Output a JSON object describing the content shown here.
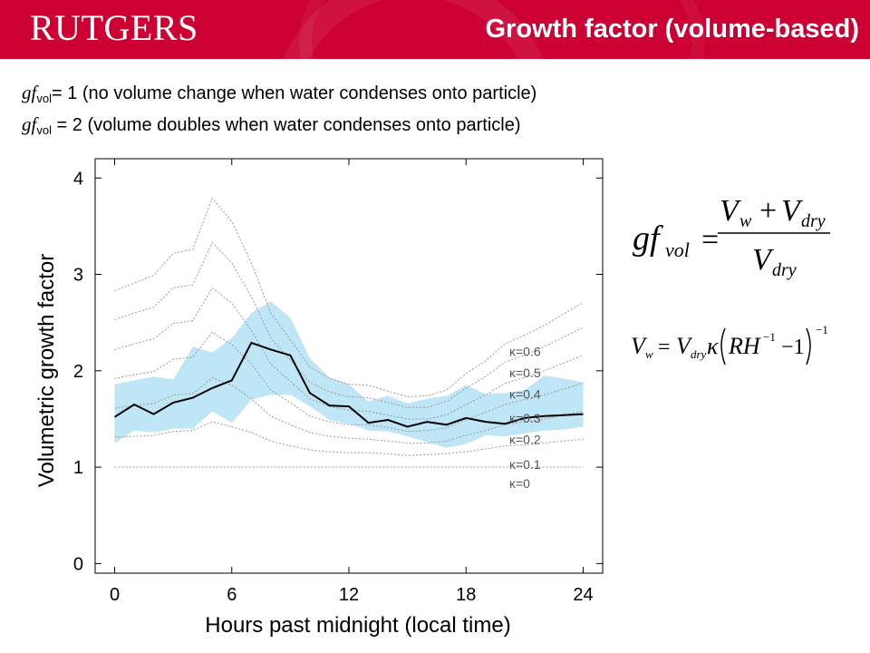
{
  "header": {
    "logo_text": "RUTGERS",
    "title": "Growth factor (volume-based)",
    "brand_color": "#cc0033"
  },
  "definitions": [
    {
      "symbol": "gf",
      "subscript": "vol",
      "text": "= 1 (no volume change when water condenses onto particle)"
    },
    {
      "symbol": "gf",
      "subscript": "vol",
      "text": " = 2 (volume doubles when water condenses onto particle)"
    }
  ],
  "equations": {
    "gf_vol": "gf_vol = (V_w + V_dry) / V_dry",
    "v_w": "V_w = V_dry κ (RH^-1 − 1)^-1"
  },
  "chart_data": {
    "type": "line",
    "xlabel": "Hours past midnight (local time)",
    "ylabel": "Volumetric growth factor",
    "xlim": [
      -1,
      25
    ],
    "ylim": [
      -0.1,
      4.2
    ],
    "xticks": [
      0,
      6,
      12,
      18,
      24
    ],
    "yticks": [
      0,
      1,
      2,
      3,
      4
    ],
    "grid": false,
    "series": [
      {
        "x": [
          0,
          1,
          2,
          3,
          4,
          5,
          6,
          7,
          8,
          9,
          10,
          11,
          12,
          13,
          14,
          15,
          16,
          17,
          18,
          19,
          20,
          21,
          22,
          23,
          24
        ],
        "values": [
          1.52,
          1.65,
          1.55,
          1.67,
          1.72,
          1.82,
          1.9,
          2.29,
          2.22,
          2.16,
          1.77,
          1.64,
          1.63,
          1.46,
          1.49,
          1.42,
          1.47,
          1.44,
          1.51,
          1.47,
          1.45,
          1.51,
          1.53,
          1.54,
          1.55
        ],
        "color": "#000000"
      }
    ],
    "band": {
      "x": [
        0,
        1,
        2,
        3,
        4,
        5,
        6,
        7,
        8,
        9,
        10,
        11,
        12,
        13,
        14,
        15,
        16,
        17,
        18,
        19,
        20,
        21,
        22,
        23,
        24
      ],
      "upper": [
        1.86,
        1.9,
        1.94,
        1.91,
        2.25,
        2.19,
        2.34,
        2.6,
        2.72,
        2.55,
        2.13,
        1.93,
        1.86,
        1.68,
        1.74,
        1.66,
        1.71,
        1.74,
        1.85,
        1.76,
        1.77,
        1.8,
        1.95,
        1.92,
        1.88
      ],
      "lower": [
        1.25,
        1.38,
        1.36,
        1.4,
        1.4,
        1.58,
        1.46,
        1.7,
        1.75,
        1.75,
        1.63,
        1.49,
        1.45,
        1.38,
        1.37,
        1.32,
        1.26,
        1.2,
        1.24,
        1.33,
        1.32,
        1.35,
        1.38,
        1.39,
        1.42
      ],
      "color": "#bfe6f7"
    },
    "kappa_curves": [
      {
        "label": "κ=0.6",
        "values": [
          2.83,
          2.91,
          2.99,
          3.22,
          3.26,
          3.79,
          3.55,
          3.12,
          2.6,
          2.32,
          2.04,
          1.92,
          1.86,
          1.85,
          1.79,
          1.73,
          1.74,
          1.8,
          1.97,
          2.1,
          2.28,
          2.37,
          2.47,
          2.59,
          2.71
        ]
      },
      {
        "label": "κ=0.5",
        "values": [
          2.53,
          2.6,
          2.66,
          2.86,
          2.89,
          3.33,
          3.12,
          2.77,
          2.34,
          2.11,
          1.88,
          1.78,
          1.73,
          1.72,
          1.67,
          1.62,
          1.62,
          1.68,
          1.82,
          1.94,
          2.09,
          2.16,
          2.25,
          2.35,
          2.45
        ]
      },
      {
        "label": "κ=0.4",
        "values": [
          2.22,
          2.28,
          2.33,
          2.49,
          2.52,
          2.86,
          2.7,
          2.42,
          2.07,
          1.89,
          1.71,
          1.63,
          1.59,
          1.58,
          1.54,
          1.5,
          1.5,
          1.54,
          1.65,
          1.75,
          1.87,
          1.93,
          2.0,
          2.08,
          2.16
        ]
      },
      {
        "label": "κ=0.3",
        "values": [
          1.92,
          1.96,
          1.99,
          2.12,
          2.14,
          2.4,
          2.27,
          2.07,
          1.8,
          1.67,
          1.53,
          1.47,
          1.44,
          1.44,
          1.41,
          1.37,
          1.38,
          1.41,
          1.49,
          1.57,
          1.65,
          1.7,
          1.75,
          1.81,
          1.87
        ]
      },
      {
        "label": "κ=0.2",
        "values": [
          1.61,
          1.64,
          1.66,
          1.75,
          1.76,
          1.93,
          1.85,
          1.71,
          1.53,
          1.44,
          1.36,
          1.32,
          1.3,
          1.29,
          1.27,
          1.25,
          1.25,
          1.27,
          1.33,
          1.38,
          1.44,
          1.47,
          1.5,
          1.54,
          1.58
        ]
      },
      {
        "label": "κ=0.1",
        "values": [
          1.31,
          1.32,
          1.33,
          1.37,
          1.38,
          1.47,
          1.42,
          1.36,
          1.27,
          1.22,
          1.18,
          1.16,
          1.15,
          1.15,
          1.14,
          1.12,
          1.13,
          1.14,
          1.16,
          1.19,
          1.22,
          1.23,
          1.25,
          1.27,
          1.29
        ]
      },
      {
        "label": "κ=0",
        "values": [
          1.0,
          1.0,
          1.0,
          1.0,
          1.0,
          1.0,
          1.0,
          1.0,
          1.0,
          1.0,
          1.0,
          1.0,
          1.0,
          1.0,
          1.0,
          1.0,
          1.0,
          1.0,
          1.0,
          1.0,
          1.0,
          1.0,
          1.0,
          1.0,
          1.0
        ]
      }
    ],
    "kappa_label_values": [
      2.2,
      1.98,
      1.76,
      1.51,
      1.29,
      1.03,
      0.83
    ]
  }
}
